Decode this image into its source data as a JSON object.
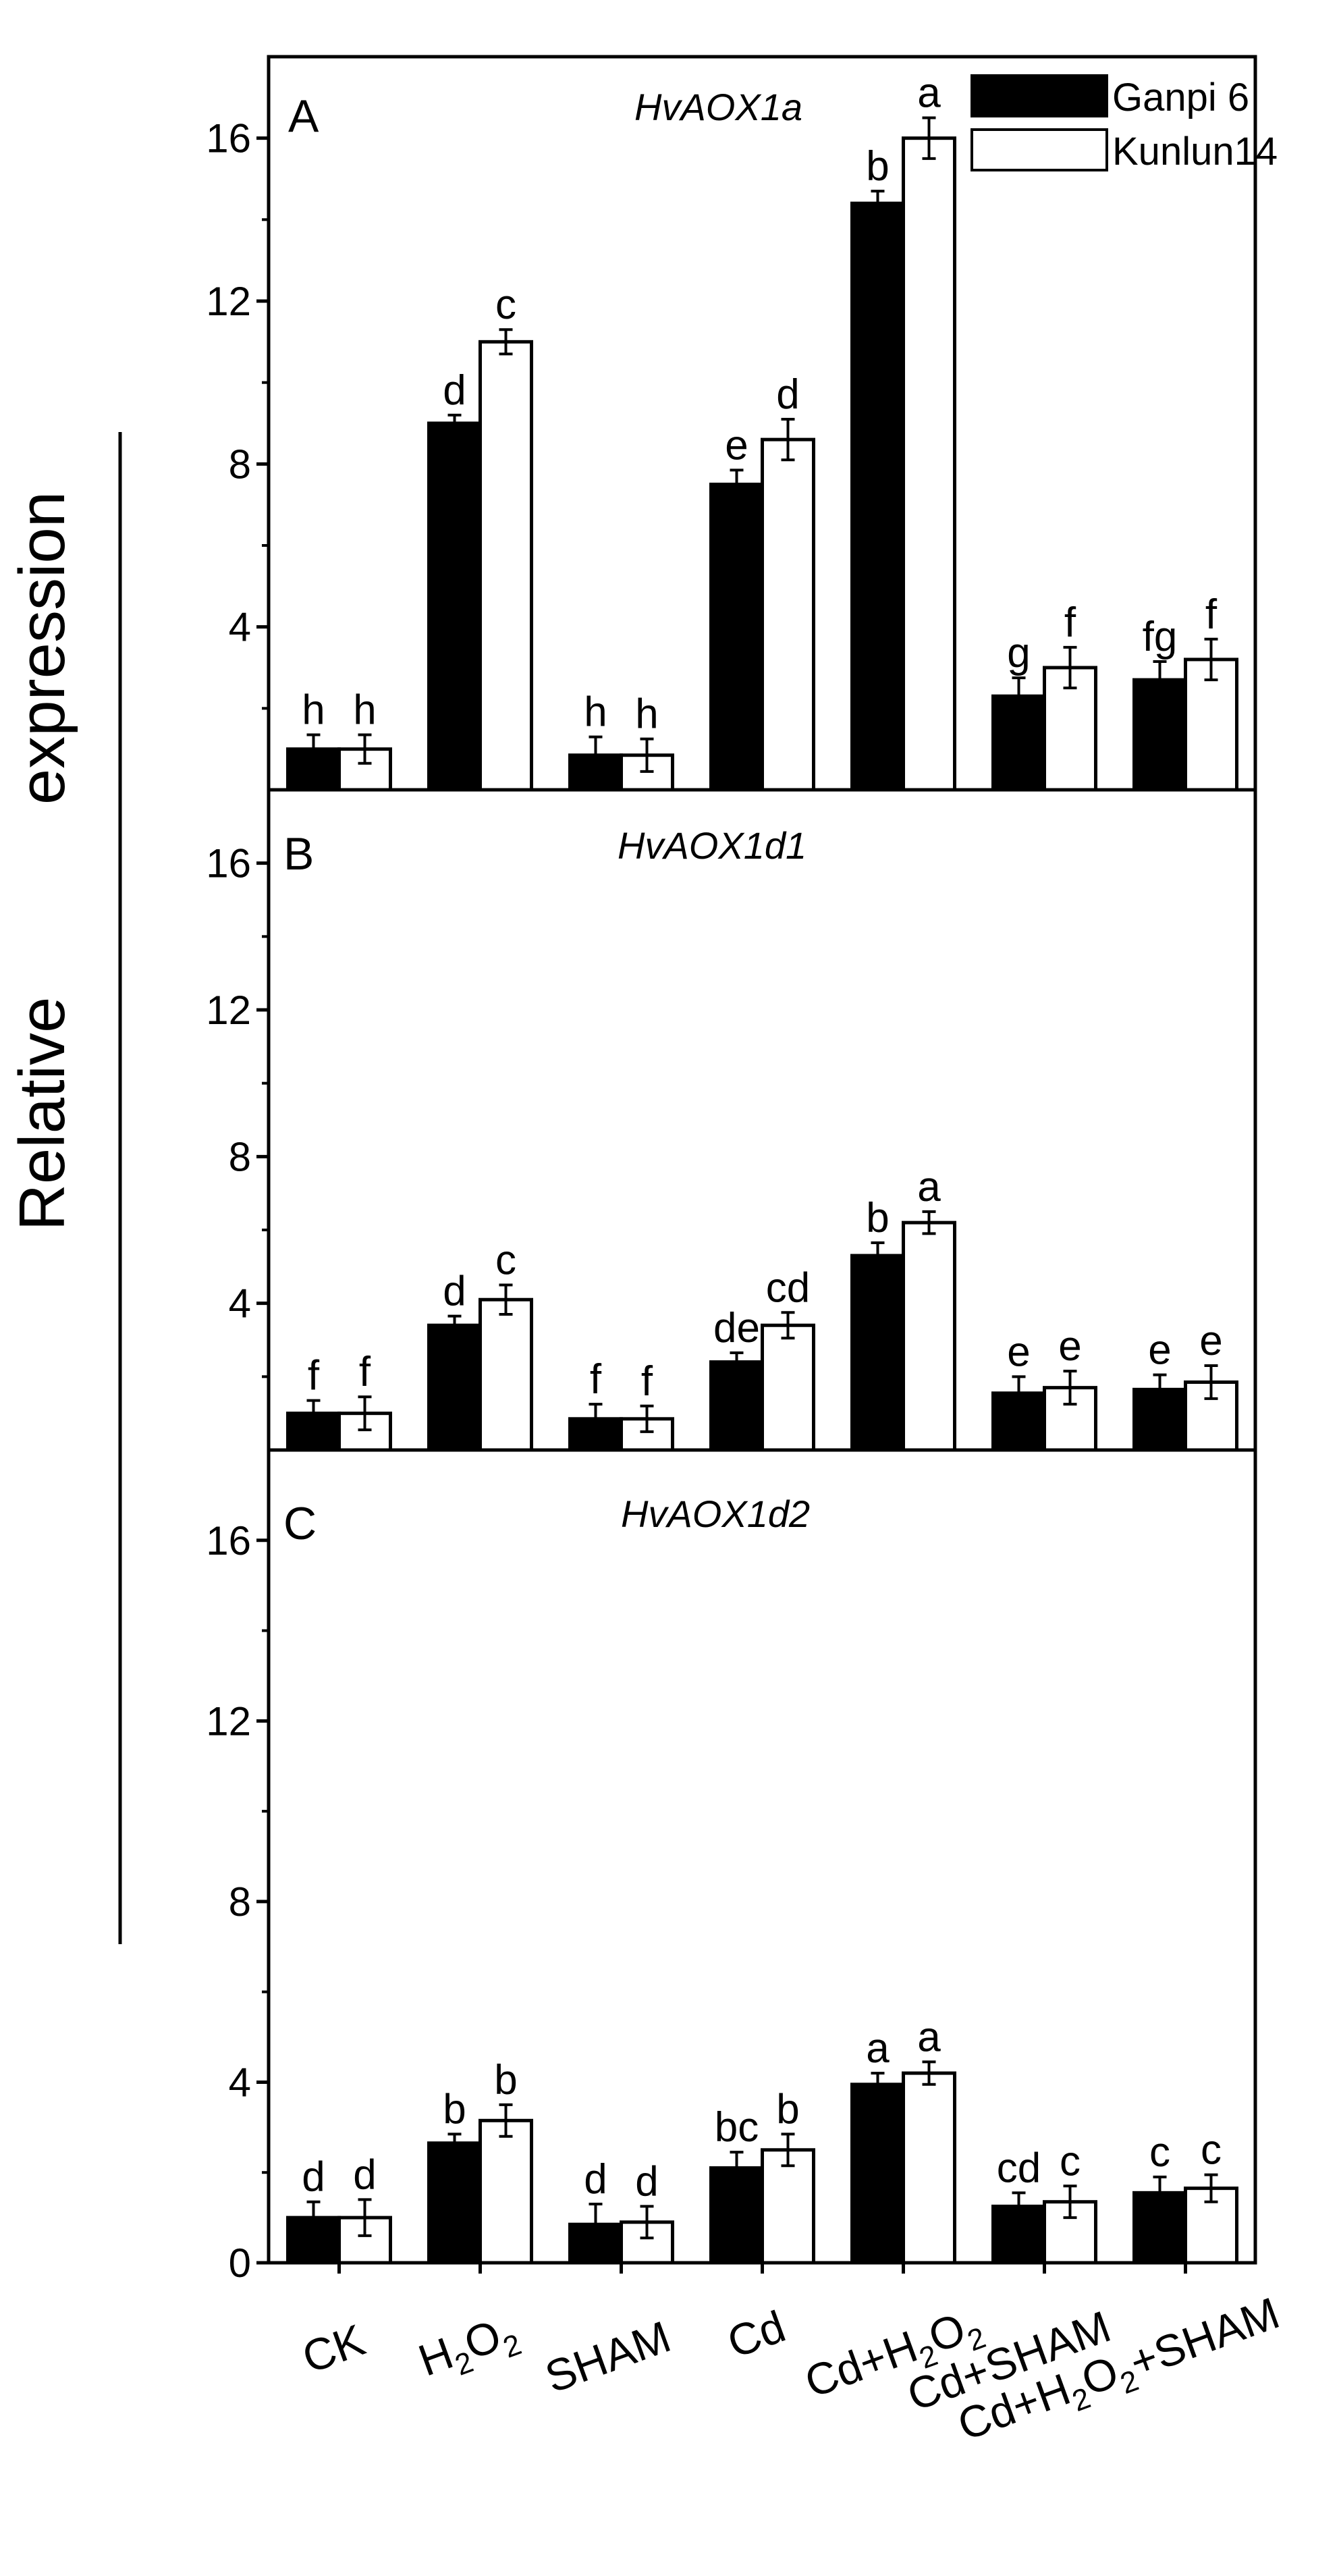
{
  "chart_data": [
    {
      "type": "bar",
      "panel": "A",
      "title": "HvAOX1a",
      "categories": [
        "CK",
        "H2O2",
        "SHAM",
        "Cd",
        "Cd+H2O2",
        "Cd+SHAM",
        "Cd+H2O2+SHAM"
      ],
      "ylim": [
        0,
        18
      ],
      "yticks": [
        "4",
        "8",
        "12",
        "16"
      ],
      "series": [
        {
          "name": "Ganpi 6",
          "color": "#000000",
          "values": [
            1.0,
            9.0,
            0.85,
            7.5,
            14.4,
            2.3,
            2.7
          ],
          "errors": [
            0.35,
            0.2,
            0.45,
            0.35,
            0.3,
            0.45,
            0.45
          ],
          "letters": [
            "h",
            "d",
            "h",
            "e",
            "b",
            "g",
            "fg"
          ]
        },
        {
          "name": "Kunlun14",
          "color": "#ffffff",
          "values": [
            1.0,
            11.0,
            0.85,
            8.6,
            16.0,
            3.0,
            3.2
          ],
          "errors": [
            0.35,
            0.3,
            0.4,
            0.5,
            0.5,
            0.5,
            0.5
          ],
          "letters": [
            "h",
            "c",
            "h",
            "d",
            "a",
            "f",
            "f"
          ]
        }
      ]
    },
    {
      "type": "bar",
      "panel": "B",
      "title": "HvAOX1d1",
      "categories": [
        "CK",
        "H2O2",
        "SHAM",
        "Cd",
        "Cd+H2O2",
        "Cd+SHAM",
        "Cd+H2O2+SHAM"
      ],
      "ylim": [
        0,
        18
      ],
      "yticks": [
        "4",
        "8",
        "12",
        "16"
      ],
      "series": [
        {
          "name": "Ganpi 6",
          "color": "#000000",
          "values": [
            1.0,
            3.4,
            0.85,
            2.4,
            5.3,
            1.55,
            1.65
          ],
          "errors": [
            0.35,
            0.25,
            0.4,
            0.25,
            0.35,
            0.45,
            0.4
          ],
          "letters": [
            "f",
            "d",
            "f",
            "de",
            "b",
            "e",
            "e"
          ]
        },
        {
          "name": "Kunlun14",
          "color": "#ffffff",
          "values": [
            1.0,
            4.1,
            0.85,
            3.4,
            6.2,
            1.7,
            1.85
          ],
          "errors": [
            0.45,
            0.4,
            0.35,
            0.35,
            0.3,
            0.45,
            0.45
          ],
          "letters": [
            "f",
            "c",
            "f",
            "cd",
            "a",
            "e",
            "e"
          ]
        }
      ]
    },
    {
      "type": "bar",
      "panel": "C",
      "title": "HvAOX1d2",
      "categories": [
        "CK",
        "H2O2",
        "SHAM",
        "Cd",
        "Cd+H2O2",
        "Cd+SHAM",
        "Cd+H2O2+SHAM"
      ],
      "ylim": [
        0,
        18
      ],
      "yticks": [
        "0",
        "4",
        "8",
        "12",
        "16"
      ],
      "series": [
        {
          "name": "Ganpi 6",
          "color": "#000000",
          "values": [
            1.0,
            2.65,
            0.85,
            2.1,
            3.95,
            1.25,
            1.55
          ],
          "errors": [
            0.35,
            0.2,
            0.45,
            0.35,
            0.25,
            0.3,
            0.35
          ],
          "letters": [
            "d",
            "b",
            "d",
            "bc",
            "a",
            "cd",
            "c"
          ]
        },
        {
          "name": "Kunlun14",
          "color": "#ffffff",
          "values": [
            1.0,
            3.15,
            0.9,
            2.5,
            4.2,
            1.35,
            1.65
          ],
          "errors": [
            0.4,
            0.35,
            0.35,
            0.35,
            0.25,
            0.35,
            0.3
          ],
          "letters": [
            "d",
            "b",
            "d",
            "b",
            "a",
            "c",
            "c"
          ]
        }
      ]
    }
  ],
  "ylabel_left": "Relative",
  "ylabel_right": "expression",
  "legend": {
    "series1": "Ganpi 6",
    "series2": "Kunlun14"
  },
  "x_labels": {
    "ck": "CK",
    "h2o2_a": "H",
    "h2o2_b": "2",
    "h2o2_c": "O",
    "h2o2_d": "2",
    "sham": "SHAM",
    "cd": "Cd",
    "cdh2o2_a": "Cd+H",
    "cdh2o2_b": "2",
    "cdh2o2_c": "O",
    "cdh2o2_d": "2",
    "cdsham": "Cd+SHAM",
    "cdh2o2sham_a": "Cd+H",
    "cdh2o2sham_b": "2",
    "cdh2o2sham_c": "O",
    "cdh2o2sham_d": "2",
    "cdh2o2sham_e": "+SHAM"
  }
}
